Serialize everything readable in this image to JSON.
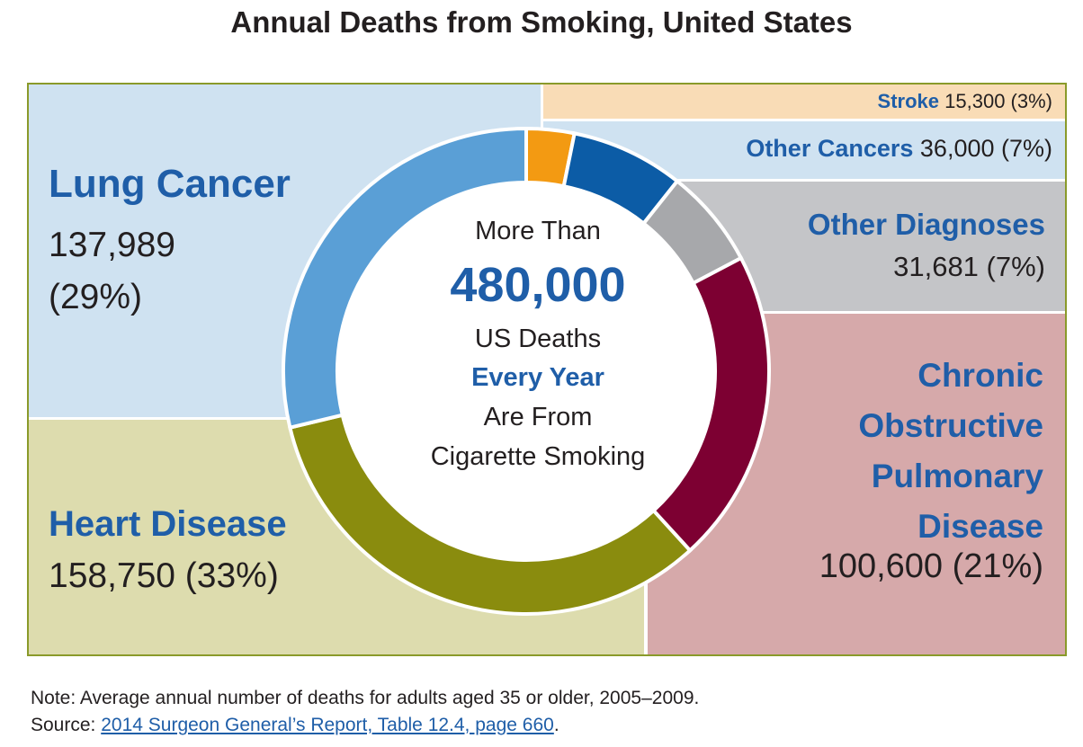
{
  "title": "Annual Deaths from Smoking, United States",
  "center": {
    "line1": "More Than",
    "number": "480,000",
    "line3": "US Deaths",
    "line4": "Every Year",
    "line5": "Are From",
    "line6": "Cigarette Smoking"
  },
  "panels": {
    "lung": {
      "name": "Lung Cancer",
      "value": "137,989",
      "percent": "(29%)"
    },
    "heart": {
      "name": "Heart Disease",
      "value": "158,750 (33%)"
    },
    "stroke": {
      "name": "Stroke",
      "value": "15,300 (3%)"
    },
    "other_cancers": {
      "name": "Other Cancers",
      "value": "36,000 (7%)"
    },
    "other_diagnoses": {
      "name": "Other Diagnoses",
      "value": "31,681 (7%)"
    },
    "copd": {
      "name": "Chronic Obstructive Pulmonary Disease",
      "value": "100,600 (21%)"
    }
  },
  "note": "Note: Average annual number of deaths for adults aged 35 or older, 2005–2009.",
  "source_label": "Source:",
  "source_link": "2014 Surgeon General’s Report, Table 12.4, page 660",
  "source_end": ".",
  "chart_data": {
    "type": "pie",
    "title": "Annual Deaths from Smoking, United States",
    "categories": [
      "Stroke",
      "Other Cancers",
      "Other Diagnoses",
      "Chronic Obstructive Pulmonary Disease",
      "Heart Disease",
      "Lung Cancer"
    ],
    "values": [
      15300,
      36000,
      31681,
      100600,
      158750,
      137989
    ],
    "colors": [
      "#f39a12",
      "#0c5ca6",
      "#a7a8ab",
      "#7d0032",
      "#8a8c0e",
      "#5a9fd6"
    ]
  }
}
